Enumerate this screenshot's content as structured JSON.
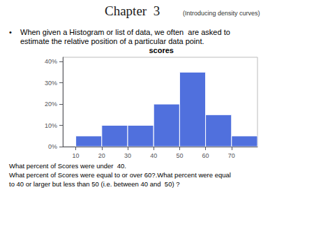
{
  "chart_data": {
    "type": "histogram",
    "title": "Chapter  3",
    "subtitle": "(Introducing density curves)",
    "annotations": [
      "•",
      "When given a Histogram or list of data, we often  are asked to",
      "estimate the relative position of a particular data point.",
      "scores",
      "What percent of Scores were under  40.",
      "What percent of Scores were equal to or over 60?.What percent were equal",
      "to 40 or larger but less than 50 (i.e. between 40 and  50) ?"
    ],
    "bins": [
      10,
      20,
      30,
      40,
      50,
      60,
      70,
      80
    ],
    "values": [
      5,
      10,
      10,
      20,
      35,
      15,
      5
    ],
    "xlim": [
      5,
      80
    ],
    "xticks": [
      10,
      20,
      30,
      40,
      50,
      60,
      70
    ],
    "ylim": [
      0,
      42
    ],
    "yticks": [
      {
        "value": 0,
        "label": "0%"
      },
      {
        "value": 10,
        "label": "10%"
      },
      {
        "value": 20,
        "label": "20%"
      },
      {
        "value": 30,
        "label": "30%"
      },
      {
        "value": 40,
        "label": "40%"
      }
    ],
    "grid": false
  }
}
